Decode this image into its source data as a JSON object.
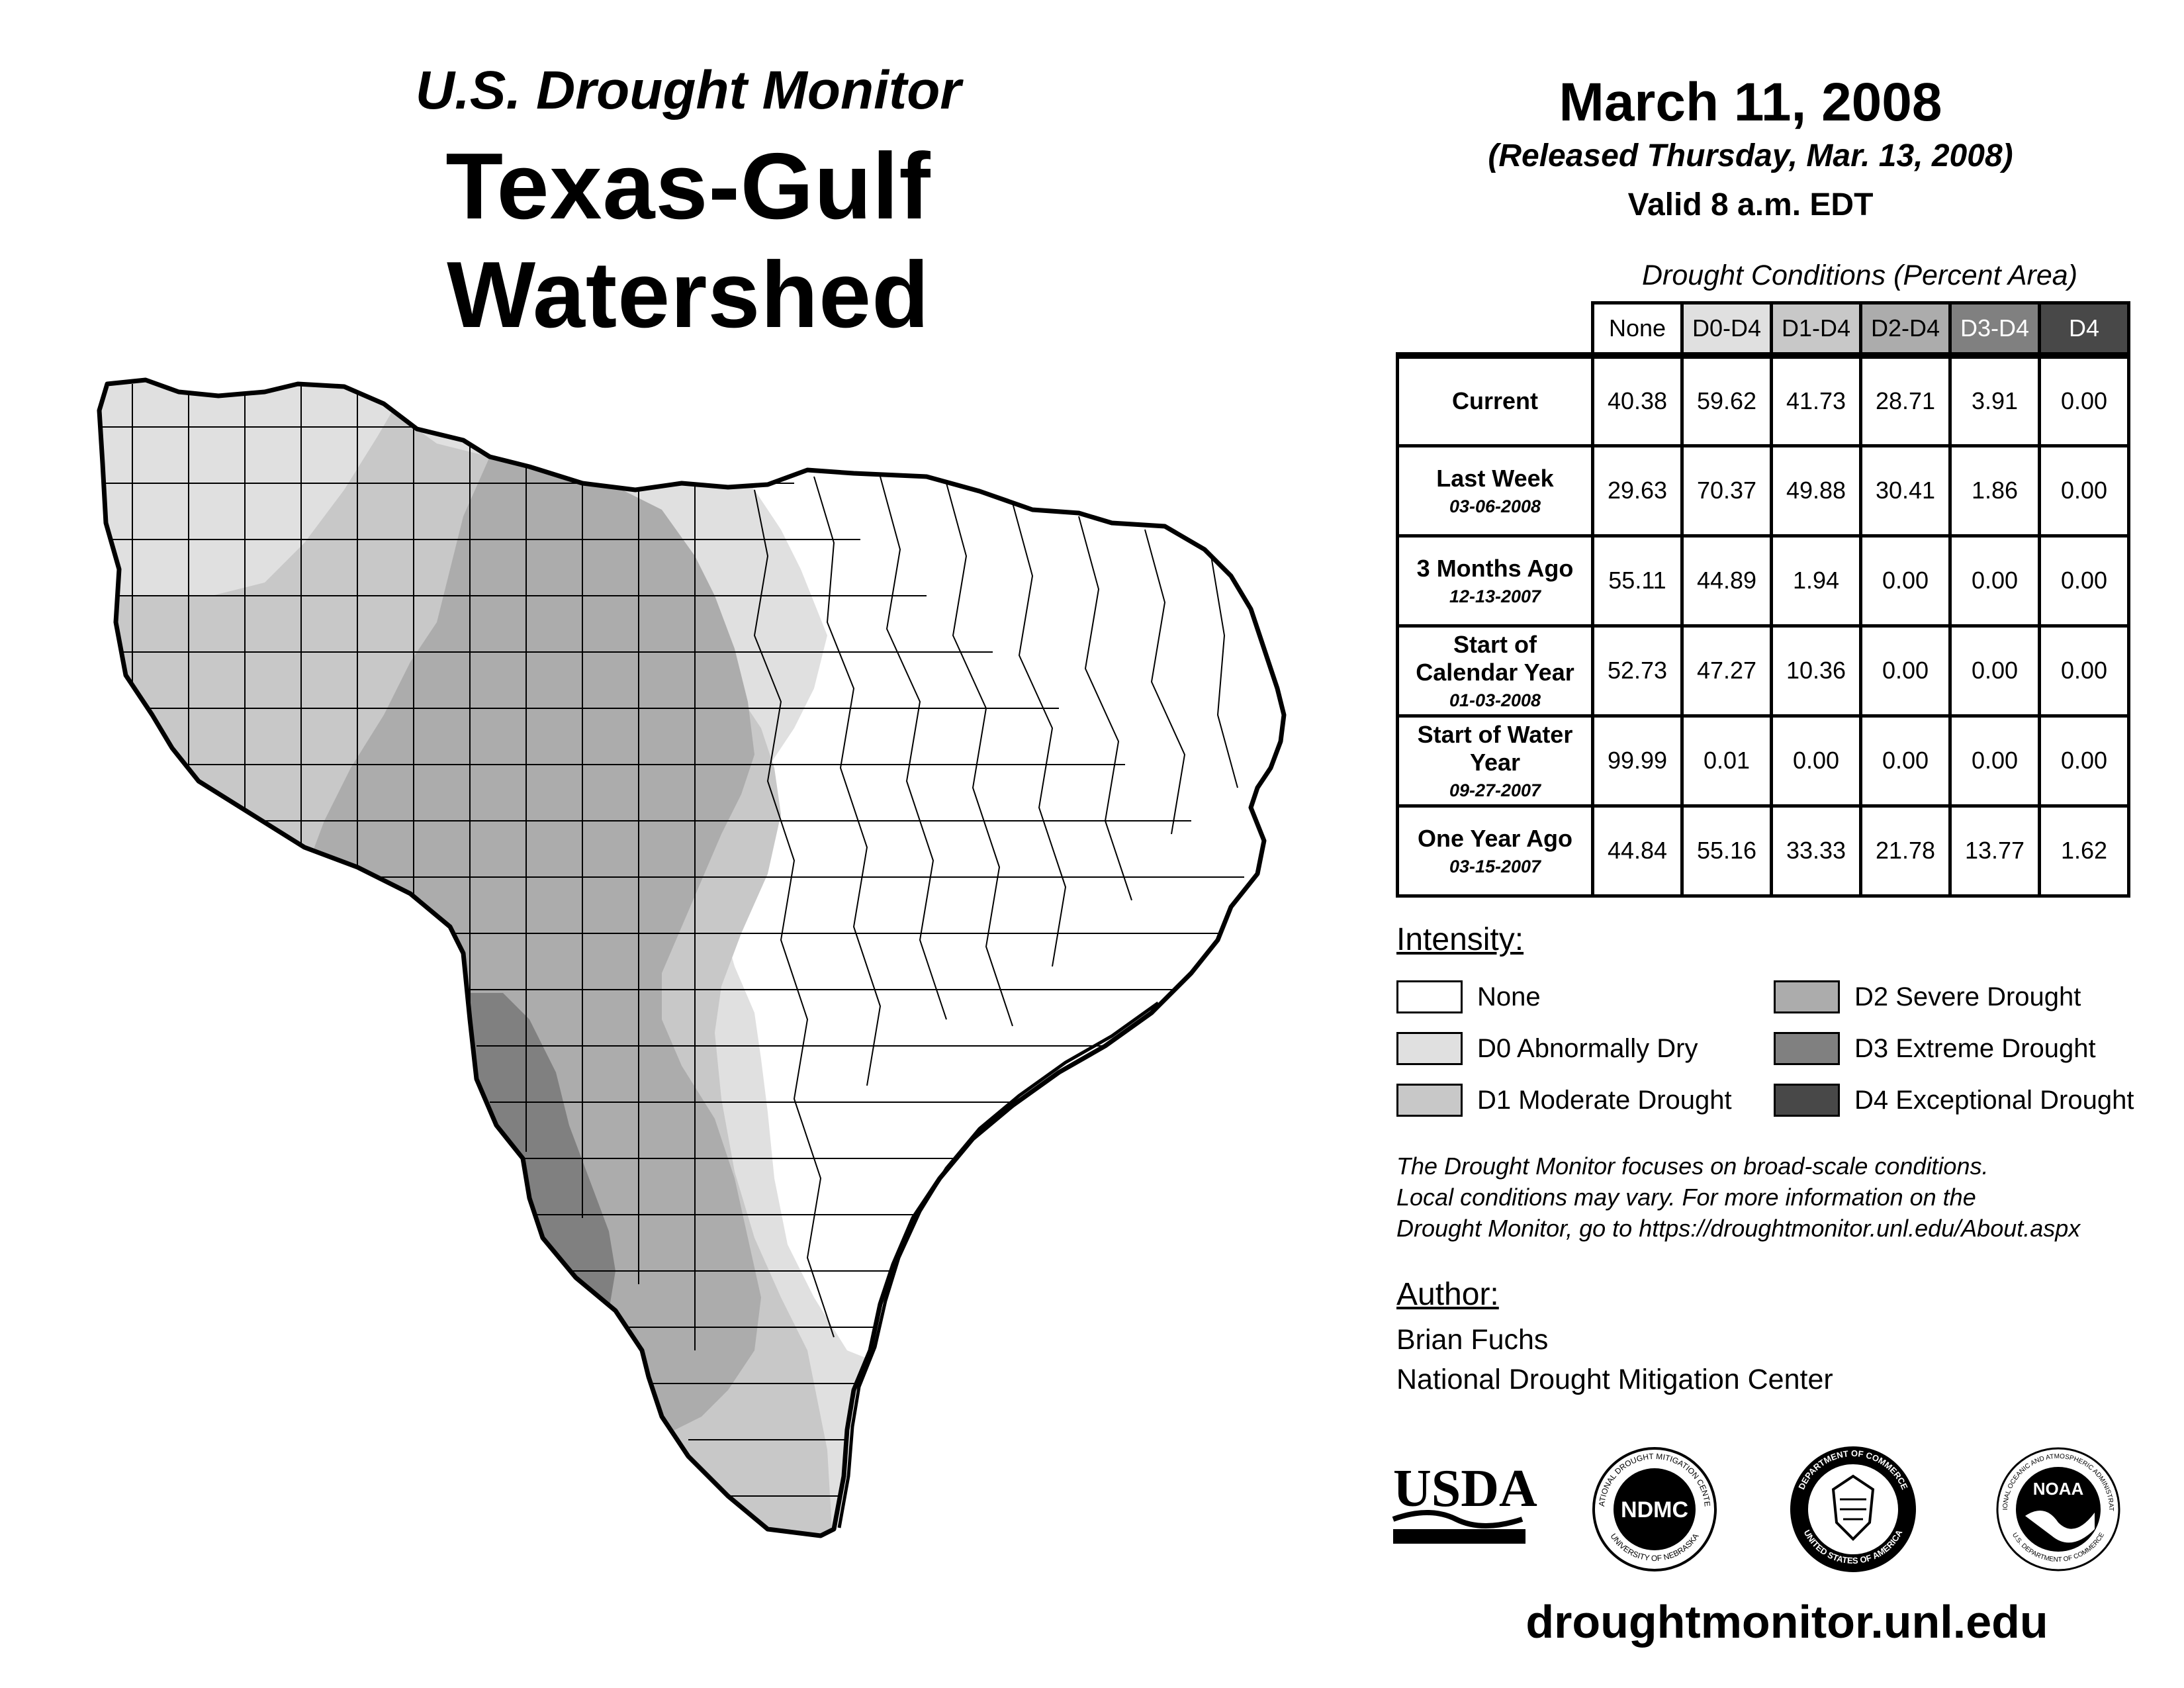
{
  "header": {
    "subtitle": "U.S. Drought Monitor",
    "title": "Texas-Gulf Watershed"
  },
  "date": {
    "map_date": "March 11, 2008",
    "released": "(Released Thursday, Mar. 13, 2008)",
    "valid": "Valid 8 a.m. EDT"
  },
  "table": {
    "caption": "Drought Conditions (Percent Area)",
    "columns": [
      "None",
      "D0-D4",
      "D1-D4",
      "D2-D4",
      "D3-D4",
      "D4"
    ],
    "rows": [
      {
        "label": "Current",
        "date": "",
        "values": [
          "40.38",
          "59.62",
          "41.73",
          "28.71",
          "3.91",
          "0.00"
        ]
      },
      {
        "label": "Last Week",
        "date": "03-06-2008",
        "values": [
          "29.63",
          "70.37",
          "49.88",
          "30.41",
          "1.86",
          "0.00"
        ]
      },
      {
        "label": "3 Months Ago",
        "date": "12-13-2007",
        "values": [
          "55.11",
          "44.89",
          "1.94",
          "0.00",
          "0.00",
          "0.00"
        ]
      },
      {
        "label": "Start of Calendar Year",
        "date": "01-03-2008",
        "values": [
          "52.73",
          "47.27",
          "10.36",
          "0.00",
          "0.00",
          "0.00"
        ]
      },
      {
        "label": "Start of Water Year",
        "date": "09-27-2007",
        "values": [
          "99.99",
          "0.01",
          "0.00",
          "0.00",
          "0.00",
          "0.00"
        ]
      },
      {
        "label": "One Year Ago",
        "date": "03-15-2007",
        "values": [
          "44.84",
          "55.16",
          "33.33",
          "21.78",
          "13.77",
          "1.62"
        ]
      }
    ]
  },
  "legend": {
    "heading": "Intensity:",
    "items": [
      {
        "label": "None",
        "color": "#ffffff"
      },
      {
        "label": "D0 Abnormally Dry",
        "color": "#e0e0e0"
      },
      {
        "label": "D1 Moderate Drought",
        "color": "#c8c8c8"
      },
      {
        "label": "D2 Severe Drought",
        "color": "#acacac"
      },
      {
        "label": "D3 Extreme Drought",
        "color": "#808080"
      },
      {
        "label": "D4 Exceptional Drought",
        "color": "#484848"
      }
    ]
  },
  "disclaimer": {
    "line1": "The Drought Monitor focuses on broad-scale conditions.",
    "line2": "Local conditions may vary. For more information on the",
    "line3": "Drought Monitor, go to https://droughtmonitor.unl.edu/About.aspx"
  },
  "author": {
    "heading": "Author:",
    "name": "Brian Fuchs",
    "organization": "National Drought Mitigation Center"
  },
  "logos": {
    "usda": "USDA",
    "ndmc": "NDMC",
    "ndmc_ring_top": "NATIONAL DROUGHT MITIGATION CENTER",
    "ndmc_ring_bottom": "UNIVERSITY OF NEBRASKA",
    "doc_ring_top": "DEPARTMENT OF COMMERCE",
    "doc_ring_bottom": "UNITED STATES OF AMERICA",
    "noaa": "NOAA",
    "noaa_ring_top": "NATIONAL OCEANIC AND ATMOSPHERIC ADMINISTRATION",
    "noaa_ring_bottom": "U.S. DEPARTMENT OF COMMERCE"
  },
  "website": "droughtmonitor.unl.edu",
  "colors": {
    "none": "#ffffff",
    "d0": "#e0e0e0",
    "d1": "#c8c8c8",
    "d2": "#acacac",
    "d3": "#808080",
    "d4": "#484848",
    "d3d4_header": "#808080",
    "d4_header": "#484848"
  }
}
